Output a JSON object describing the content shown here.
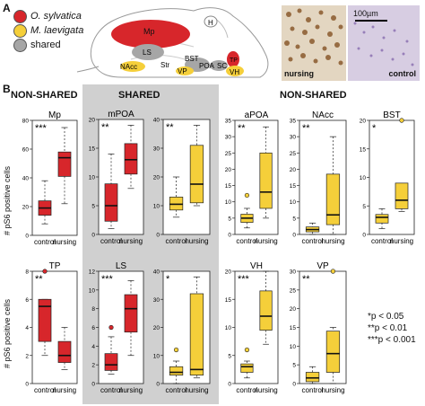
{
  "panel_a": {
    "letter": "A",
    "legend": [
      {
        "label": "O. sylvatica",
        "color": "#d7262b",
        "italic": true
      },
      {
        "label": "M. laevigata",
        "color": "#f5cf3a",
        "italic": true
      },
      {
        "label": "shared",
        "color": "#a6a6a6",
        "italic": false
      }
    ],
    "regions": [
      "H",
      "Mp",
      "LS",
      "BST",
      "Str",
      "NAcc",
      "VP",
      "POA",
      "SC",
      "TP",
      "VH"
    ],
    "scale_bar": "100µm",
    "photo_labels": [
      "nursing",
      "control"
    ]
  },
  "panel_b": {
    "letter": "B",
    "section_headers": [
      "NON-SHARED",
      "SHARED",
      "NON-SHARED"
    ],
    "ylabel": "# pS6 positive cells",
    "significance_legend": [
      "*p < 0.05",
      "**p < 0.01",
      "***p < 0.001"
    ]
  },
  "chart_data": [
    {
      "type": "box",
      "title": "Mp",
      "color": "#d7262b",
      "categories": [
        "control",
        "nursing"
      ],
      "ylim": [
        0,
        80
      ],
      "yticks": [
        0,
        20,
        40,
        60,
        80
      ],
      "sig": "***",
      "boxes": [
        {
          "min": 8,
          "q1": 14,
          "median": 19,
          "q3": 24,
          "max": 38,
          "outliers": []
        },
        {
          "min": 22,
          "q1": 41,
          "median": 54,
          "q3": 58,
          "max": 75,
          "outliers": []
        }
      ]
    },
    {
      "type": "box",
      "title": "mPOA",
      "color": "#d7262b",
      "categories": [
        "control",
        "nursing"
      ],
      "ylim": [
        0,
        20
      ],
      "yticks": [
        0,
        5,
        10,
        15,
        20
      ],
      "sig": "**",
      "boxes": [
        {
          "min": 1,
          "q1": 2.3,
          "median": 5,
          "q3": 8.8,
          "max": 14,
          "outliers": []
        },
        {
          "min": 8,
          "q1": 10.5,
          "median": 13,
          "q3": 15.8,
          "max": 19,
          "outliers": []
        }
      ]
    },
    {
      "type": "box",
      "title": "",
      "color": "#f5cf3a",
      "categories": [
        "control",
        "nursing"
      ],
      "ylim": [
        0,
        40
      ],
      "yticks": [
        0,
        10,
        20,
        30,
        40
      ],
      "sig": "**",
      "boxes": [
        {
          "min": 6,
          "q1": 8.5,
          "median": 10.5,
          "q3": 13,
          "max": 20,
          "outliers": []
        },
        {
          "min": 10,
          "q1": 11,
          "median": 17.5,
          "q3": 31,
          "max": 38,
          "outliers": []
        }
      ]
    },
    {
      "type": "box",
      "title": "aPOA",
      "color": "#f5cf3a",
      "categories": [
        "control",
        "nursing"
      ],
      "ylim": [
        0,
        35
      ],
      "yticks": [
        0,
        5,
        10,
        15,
        20,
        25,
        30,
        35
      ],
      "sig": "**",
      "boxes": [
        {
          "min": 2,
          "q1": 3.7,
          "median": 5,
          "q3": 6.2,
          "max": 8,
          "outliers": [
            12
          ]
        },
        {
          "min": 5,
          "q1": 8,
          "median": 13,
          "q3": 25,
          "max": 33,
          "outliers": []
        }
      ]
    },
    {
      "type": "box",
      "title": "NAcc",
      "color": "#f5cf3a",
      "categories": [
        "control",
        "nursing"
      ],
      "ylim": [
        0,
        35
      ],
      "yticks": [
        0,
        5,
        10,
        15,
        20,
        25,
        30,
        35
      ],
      "sig": "**",
      "boxes": [
        {
          "min": 0,
          "q1": 0.8,
          "median": 1.5,
          "q3": 2.3,
          "max": 3.5,
          "outliers": []
        },
        {
          "min": 0,
          "q1": 3,
          "median": 6,
          "q3": 18.5,
          "max": 30,
          "outliers": []
        }
      ]
    },
    {
      "type": "box",
      "title": "BST",
      "color": "#f5cf3a",
      "categories": [
        "control",
        "nursing"
      ],
      "ylim": [
        0,
        20
      ],
      "yticks": [
        0,
        5,
        10,
        15,
        20
      ],
      "sig": "*",
      "boxes": [
        {
          "min": 1,
          "q1": 2,
          "median": 3,
          "q3": 3.5,
          "max": 4.5,
          "outliers": []
        },
        {
          "min": 4,
          "q1": 4.5,
          "median": 6,
          "q3": 9,
          "max": 9,
          "outliers": [
            20
          ]
        }
      ]
    },
    {
      "type": "box",
      "title": "TP",
      "color": "#d7262b",
      "categories": [
        "control",
        "nursing"
      ],
      "ylim": [
        0,
        8
      ],
      "yticks": [
        0,
        2,
        4,
        6,
        8
      ],
      "sig": "**",
      "boxes": [
        {
          "min": 2,
          "q1": 3,
          "median": 5.5,
          "q3": 6,
          "max": 6,
          "outliers": [
            8
          ]
        },
        {
          "min": 1,
          "q1": 1.5,
          "median": 2,
          "q3": 3,
          "max": 4,
          "outliers": []
        }
      ]
    },
    {
      "type": "box",
      "title": "LS",
      "color": "#d7262b",
      "categories": [
        "control",
        "nursing"
      ],
      "ylim": [
        0,
        12
      ],
      "yticks": [
        0,
        2,
        4,
        6,
        8,
        10,
        12
      ],
      "sig": "***",
      "boxes": [
        {
          "min": 1,
          "q1": 1.4,
          "median": 2,
          "q3": 3.2,
          "max": 5,
          "outliers": [
            6
          ]
        },
        {
          "min": 3,
          "q1": 5.5,
          "median": 8,
          "q3": 9.5,
          "max": 11,
          "outliers": []
        }
      ]
    },
    {
      "type": "box",
      "title": "",
      "color": "#f5cf3a",
      "categories": [
        "control",
        "nursing"
      ],
      "ylim": [
        0,
        40
      ],
      "yticks": [
        0,
        10,
        20,
        30,
        40
      ],
      "sig": "*",
      "boxes": [
        {
          "min": 0,
          "q1": 3,
          "median": 4,
          "q3": 6,
          "max": 8,
          "outliers": [
            12
          ]
        },
        {
          "min": 2,
          "q1": 3,
          "median": 5,
          "q3": 32,
          "max": 38,
          "outliers": []
        }
      ]
    },
    {
      "type": "box",
      "title": "VH",
      "color": "#f5cf3a",
      "categories": [
        "control",
        "nursing"
      ],
      "ylim": [
        0,
        20
      ],
      "yticks": [
        0,
        5,
        10,
        15,
        20
      ],
      "sig": "***",
      "boxes": [
        {
          "min": 1,
          "q1": 2,
          "median": 3,
          "q3": 3.5,
          "max": 4,
          "outliers": [
            6
          ]
        },
        {
          "min": 7,
          "q1": 9.5,
          "median": 12,
          "q3": 16.5,
          "max": 20,
          "outliers": []
        }
      ]
    },
    {
      "type": "box",
      "title": "VP",
      "color": "#f5cf3a",
      "categories": [
        "control",
        "nursing"
      ],
      "ylim": [
        0,
        30
      ],
      "yticks": [
        0,
        5,
        10,
        15,
        20,
        25,
        30
      ],
      "sig": "**",
      "boxes": [
        {
          "min": 0,
          "q1": 0.5,
          "median": 1.5,
          "q3": 3,
          "max": 4.5,
          "outliers": []
        },
        {
          "min": 0,
          "q1": 3,
          "median": 8,
          "q3": 14,
          "max": 15,
          "outliers": [
            31
          ]
        }
      ]
    }
  ]
}
